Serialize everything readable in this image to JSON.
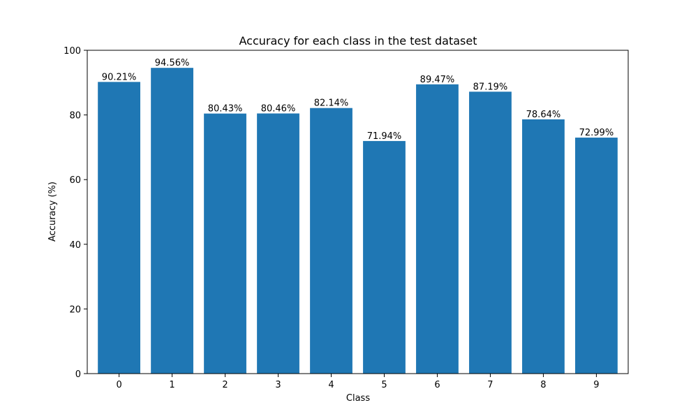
{
  "chart_data": {
    "type": "bar",
    "title": "Accuracy for each class in the test dataset",
    "xlabel": "Class",
    "ylabel": "Accuracy (%)",
    "categories": [
      "0",
      "1",
      "2",
      "3",
      "4",
      "5",
      "6",
      "7",
      "8",
      "9"
    ],
    "values": [
      90.21,
      94.56,
      80.43,
      80.46,
      82.14,
      71.94,
      89.47,
      87.19,
      78.64,
      72.99
    ],
    "data_labels": [
      "90.21%",
      "94.56%",
      "80.43%",
      "80.46%",
      "82.14%",
      "71.94%",
      "89.47%",
      "87.19%",
      "78.64%",
      "72.99%"
    ],
    "ylim": [
      0,
      100
    ],
    "yticks": [
      0,
      20,
      40,
      60,
      80,
      100
    ],
    "grid": false,
    "bar_color": "#1f77b4"
  }
}
